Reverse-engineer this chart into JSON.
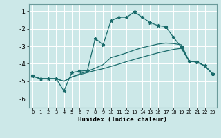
{
  "xlabel": "Humidex (Indice chaleur)",
  "background_color": "#cce8e8",
  "grid_color": "#ffffff",
  "line_color": "#1a6b6b",
  "xlim": [
    -0.5,
    23.5
  ],
  "ylim": [
    -6.5,
    -0.6
  ],
  "yticks": [
    -6,
    -5,
    -4,
    -3,
    -2,
    -1
  ],
  "xticks": [
    0,
    1,
    2,
    3,
    4,
    5,
    6,
    7,
    8,
    9,
    10,
    11,
    12,
    13,
    14,
    15,
    16,
    17,
    18,
    19,
    20,
    21,
    22,
    23
  ],
  "s1_y": [
    -4.7,
    -4.85,
    -4.85,
    -4.85,
    -5.0,
    -4.75,
    -4.62,
    -4.5,
    -4.38,
    -4.28,
    -4.15,
    -4.02,
    -3.88,
    -3.75,
    -3.62,
    -3.5,
    -3.38,
    -3.28,
    -3.18,
    -3.12,
    -3.85,
    -3.9,
    -4.12,
    -4.58
  ],
  "s2_y": [
    -4.7,
    -4.85,
    -4.85,
    -4.85,
    -5.0,
    -4.75,
    -4.58,
    -4.42,
    -4.25,
    -4.05,
    -3.65,
    -3.52,
    -3.38,
    -3.22,
    -3.08,
    -2.98,
    -2.88,
    -2.82,
    -2.85,
    -2.92,
    -3.85,
    -3.9,
    -4.12,
    -4.58
  ],
  "s3_y": [
    -4.7,
    -4.85,
    -4.85,
    -4.85,
    -5.55,
    -4.5,
    -4.42,
    -4.38,
    -2.55,
    -2.92,
    -1.55,
    -1.35,
    -1.35,
    -1.05,
    -1.35,
    -1.65,
    -1.82,
    -1.88,
    -2.5,
    -3.05,
    -3.85,
    -3.9,
    -4.12,
    -4.58
  ]
}
